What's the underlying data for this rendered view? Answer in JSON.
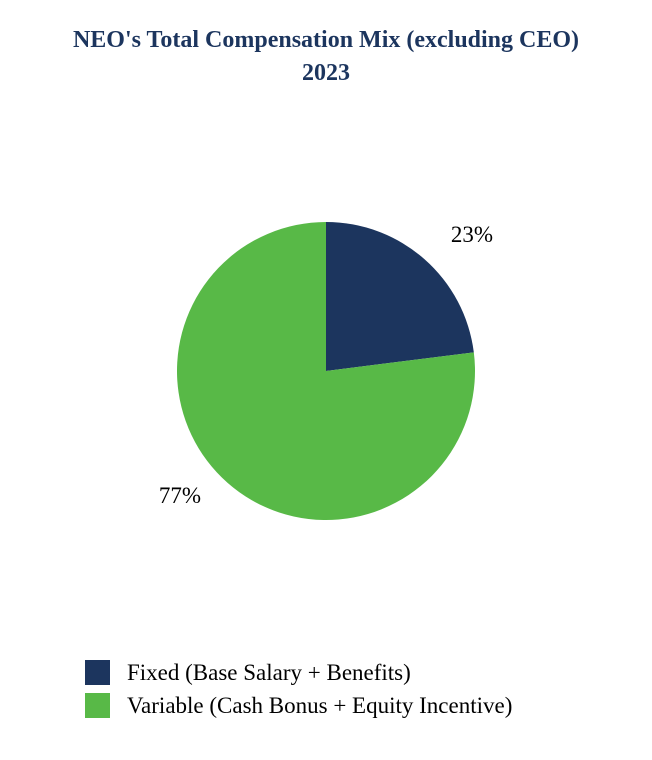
{
  "chart_data": {
    "type": "pie",
    "title": "NEO's Total Compensation Mix (excluding CEO) 2023",
    "categories": [
      "Fixed (Base Salary + Benefits)",
      "Variable (Cash Bonus + Equity Incentive)"
    ],
    "values": [
      23,
      77
    ],
    "data_labels": [
      "23%",
      "77%"
    ],
    "colors": [
      "#1c355e",
      "#58b947"
    ],
    "legend_position": "bottom",
    "start_angle": "12 o'clock",
    "direction": "clockwise"
  }
}
